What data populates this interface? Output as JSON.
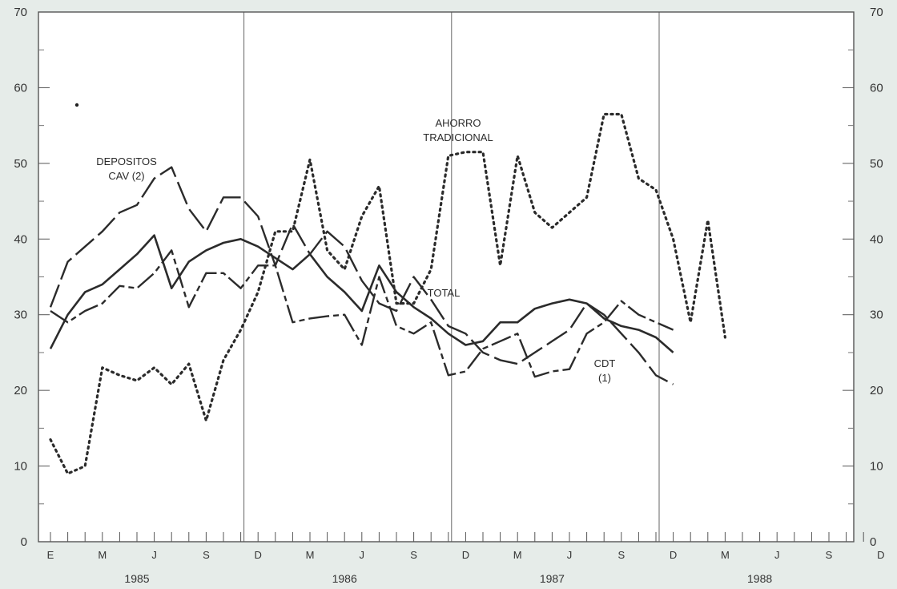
{
  "chart_data": {
    "type": "line",
    "ylim": [
      0,
      70
    ],
    "y_ticks": [
      "0",
      "10",
      "20",
      "30",
      "40",
      "50",
      "60",
      "70"
    ],
    "x_month_labels": [
      "E",
      "M",
      "J",
      "S",
      "D",
      "M",
      "J",
      "S",
      "D",
      "M",
      "J",
      "S",
      "D",
      "M",
      "J",
      "S",
      "D"
    ],
    "x_year_labels": [
      "1985",
      "1986",
      "1987",
      "1988"
    ],
    "grid": false,
    "series": [
      {
        "name": "AHORRO TRADICIONAL",
        "label_lines": [
          "AHORRO",
          "TRADICIONAL"
        ],
        "style": "dotted",
        "values": [
          13.5,
          9.0,
          10.0,
          23.0,
          22.0,
          21.3,
          23.0,
          20.8,
          23.5,
          16.0,
          24.0,
          28.0,
          33.0,
          41.0,
          41.0,
          50.5,
          38.5,
          36.0,
          43.0,
          47.0,
          31.5,
          31.5,
          36.0,
          51.0,
          51.5,
          51.5,
          36.5,
          51.0,
          43.5,
          41.5,
          43.5,
          45.5,
          56.5,
          56.5,
          48.0,
          46.5,
          40.0,
          29.0,
          42.5,
          27.0
        ]
      },
      {
        "name": "DEPOSITOS CAV (2)",
        "label_lines": [
          "DEPOSITOS",
          "CAV (2)"
        ],
        "style": "long-dash",
        "values": [
          31.0,
          37.0,
          39.0,
          41.0,
          43.5,
          44.5,
          48.0,
          49.5,
          44.0,
          41.0,
          45.5,
          45.5,
          43.0,
          36.5,
          42.0,
          38.0,
          41.0,
          39.0,
          34.5,
          31.5,
          30.5,
          35.0,
          32.0,
          28.5,
          27.5,
          25.0,
          24.0,
          23.5,
          25.0,
          26.5,
          28.0,
          31.5,
          30.0,
          27.5,
          25.0,
          22.0,
          20.8
        ]
      },
      {
        "name": "TOTAL",
        "label_lines": [
          "TOTAL"
        ],
        "style": "solid",
        "values": [
          25.5,
          30.0,
          33.0,
          34.0,
          36.0,
          38.0,
          40.5,
          33.5,
          37.0,
          38.5,
          39.5,
          40.0,
          39.0,
          37.5,
          36.0,
          38.0,
          35.0,
          33.0,
          30.5,
          36.5,
          33.0,
          31.0,
          29.5,
          27.5,
          26.0,
          26.5,
          29.0,
          29.0,
          30.8,
          31.5,
          32.0,
          31.5,
          29.5,
          28.5,
          28.0,
          27.0,
          25.0
        ]
      },
      {
        "name": "CDT (1)",
        "label_lines": [
          "CDT",
          "(1)"
        ],
        "style": "long-short-dash",
        "values": [
          30.5,
          29.0,
          30.5,
          31.5,
          33.8,
          33.5,
          35.5,
          38.5,
          31.0,
          35.5,
          35.5,
          33.5,
          36.5,
          36.5,
          29.0,
          29.5,
          29.8,
          30.0,
          26.0,
          35.0,
          28.5,
          27.5,
          29.0,
          22.0,
          22.5,
          25.5,
          26.5,
          27.5,
          21.8,
          22.5,
          22.8,
          27.5,
          29.0,
          31.8,
          30.0,
          29.0,
          28.0
        ]
      }
    ]
  }
}
